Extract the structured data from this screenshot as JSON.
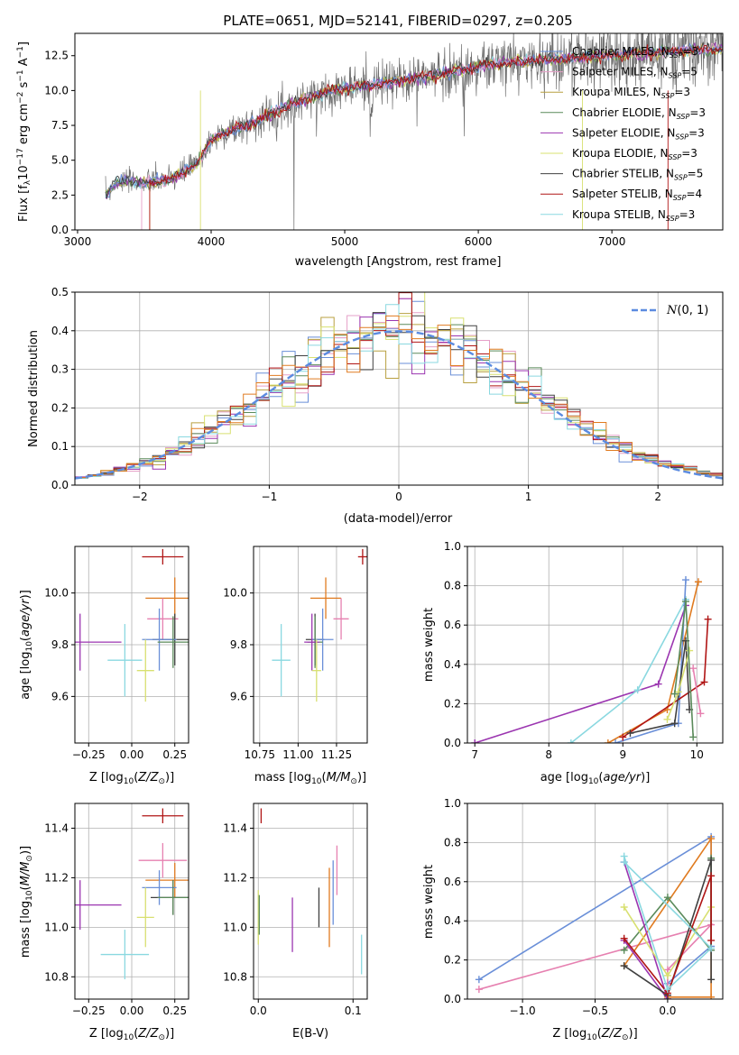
{
  "title": "PLATE=0651, MJD=52141, FIBERID=0297, z=0.205",
  "colors": {
    "cm": "#6a8fd8",
    "sm": "#e6a0c8",
    "km": "#b8a040",
    "ce": "#5a8a5a",
    "se": "#9b35b0",
    "ke": "#d8e070",
    "cs": "#404040",
    "ss": "#b01515",
    "ks": "#8ad8e0",
    "orange": "#e07b20",
    "pink": "#e680b0",
    "grid": "#b0b0b0",
    "gauss": "#5b8be0"
  },
  "chart_data": [
    {
      "type": "line",
      "id": "spectrum",
      "xlabel": "wavelength [Angstrom, rest frame]",
      "ylabel": "Flux [f",
      "xlim": [
        2980,
        7830
      ],
      "ylim": [
        0,
        14.1
      ],
      "xticks": [
        "3000",
        "4000",
        "5000",
        "6000",
        "7000"
      ],
      "yticks": [
        "0.0",
        "2.5",
        "5.0",
        "7.5",
        "10.0",
        "12.5"
      ],
      "legend": [
        {
          "name": "Chabrier MILES, N",
          "n": "=3",
          "color": "cm"
        },
        {
          "name": "Salpeter MILES, N",
          "n": "=5",
          "color": "sm"
        },
        {
          "name": "Kroupa MILES, N",
          "n": "=3",
          "color": "km"
        },
        {
          "name": "Chabrier ELODIE, N",
          "n": "=3",
          "color": "ce"
        },
        {
          "name": "Salpeter ELODIE, N",
          "n": "=3",
          "color": "se"
        },
        {
          "name": "Kroupa ELODIE, N",
          "n": "=3",
          "color": "ke"
        },
        {
          "name": "Chabrier STELIB, N",
          "n": "=5",
          "color": "cs"
        },
        {
          "name": "Salpeter STELIB, N",
          "n": "=4",
          "color": "ss"
        },
        {
          "name": "Kroupa STELIB, N",
          "n": "=3",
          "color": "ks"
        }
      ],
      "data_envelope": {
        "x": [
          3210,
          3300,
          3500,
          3700,
          3900,
          4000,
          4100,
          4300,
          4500,
          4700,
          4900,
          5100,
          5300,
          5600,
          5900,
          6200,
          6500,
          6800,
          7100,
          7400,
          7800
        ],
        "y": [
          2.5,
          3.5,
          3.4,
          3.6,
          4.8,
          6.4,
          7.0,
          7.6,
          8.6,
          9.4,
          10.0,
          10.3,
          10.5,
          11.0,
          11.5,
          12.0,
          12.2,
          12.4,
          12.6,
          12.8,
          13.0
        ]
      }
    },
    {
      "type": "histogram",
      "id": "residuals",
      "xlabel": "(data-model)/error",
      "ylabel": "Normed distribution",
      "xlim": [
        -2.5,
        2.5
      ],
      "ylim": [
        0,
        0.5
      ],
      "xticks": [
        "−2",
        "−1",
        "0",
        "1",
        "2"
      ],
      "yticks": [
        "0.0",
        "0.1",
        "0.2",
        "0.3",
        "0.4",
        "0.5"
      ],
      "legend": "N(0, 1)",
      "curve": "gaussian mean 0 sigma 1"
    },
    {
      "type": "scatter",
      "id": "age_vs_Z",
      "xlabel": "Z [log10(Z/Z☉)]",
      "ylabel": "age  [log10(age/yr)]",
      "xlim": [
        -0.33,
        0.33
      ],
      "ylim": [
        9.42,
        10.18
      ],
      "xticks": [
        "−0.25",
        "0.00",
        "0.25"
      ],
      "yticks": [
        "9.6",
        "9.8",
        "10.0"
      ],
      "points": [
        {
          "x": 0.18,
          "y": 10.14,
          "xe": 0.12,
          "ye": 0.03,
          "c": "ss"
        },
        {
          "x": 0.25,
          "y": 9.98,
          "xe": 0.17,
          "ye": 0.08,
          "c": "orange"
        },
        {
          "x": 0.18,
          "y": 9.9,
          "xe": 0.09,
          "ye": 0.08,
          "c": "pink"
        },
        {
          "x": 0.25,
          "y": 9.82,
          "xe": 0.13,
          "ye": 0.1,
          "c": "cs"
        },
        {
          "x": 0.16,
          "y": 9.82,
          "xe": 0.1,
          "ye": 0.12,
          "c": "cm"
        },
        {
          "x": 0.24,
          "y": 9.81,
          "xe": 0.09,
          "ye": 0.1,
          "c": "ce"
        },
        {
          "x": -0.3,
          "y": 9.81,
          "xe": 0.24,
          "ye": 0.11,
          "c": "se"
        },
        {
          "x": 0.08,
          "y": 9.7,
          "xe": 0.05,
          "ye": 0.12,
          "c": "ke"
        },
        {
          "x": -0.04,
          "y": 9.74,
          "xe": 0.1,
          "ye": 0.14,
          "c": "ks"
        }
      ]
    },
    {
      "type": "scatter",
      "id": "age_vs_mass",
      "xlabel": "mass [log10(M/M☉)]",
      "ylabel": "",
      "xlim": [
        10.71,
        11.45
      ],
      "ylim": [
        9.42,
        10.18
      ],
      "xticks": [
        "10.75",
        "11.00",
        "11.25"
      ],
      "yticks": [
        "9.6",
        "9.8",
        "10.0"
      ],
      "points": [
        {
          "x": 11.42,
          "y": 10.14,
          "xe": 0.03,
          "ye": 0.03,
          "c": "ss"
        },
        {
          "x": 11.18,
          "y": 9.98,
          "xe": 0.1,
          "ye": 0.08,
          "c": "orange"
        },
        {
          "x": 11.28,
          "y": 9.9,
          "xe": 0.05,
          "ye": 0.08,
          "c": "pink"
        },
        {
          "x": 11.11,
          "y": 9.82,
          "xe": 0.06,
          "ye": 0.1,
          "c": "cs"
        },
        {
          "x": 11.16,
          "y": 9.82,
          "xe": 0.07,
          "ye": 0.12,
          "c": "cm"
        },
        {
          "x": 11.11,
          "y": 9.81,
          "xe": 0.05,
          "ye": 0.1,
          "c": "ce"
        },
        {
          "x": 11.09,
          "y": 9.81,
          "xe": 0.05,
          "ye": 0.11,
          "c": "se"
        },
        {
          "x": 11.12,
          "y": 9.7,
          "xe": 0.03,
          "ye": 0.12,
          "c": "ke"
        },
        {
          "x": 10.89,
          "y": 9.74,
          "xe": 0.06,
          "ye": 0.14,
          "c": "ks"
        }
      ]
    },
    {
      "type": "line",
      "id": "mass_weight_vs_age",
      "xlabel": "age  [log10(age/yr)]",
      "ylabel": "mass weight",
      "xlim": [
        6.9,
        10.35
      ],
      "ylim": [
        0,
        1.0
      ],
      "xticks": [
        "7",
        "8",
        "9",
        "10"
      ],
      "yticks": [
        "0.0",
        "0.2",
        "0.4",
        "0.6",
        "0.8",
        "1.0"
      ],
      "series": [
        {
          "c": "se",
          "x": [
            7.0,
            9.48,
            9.85
          ],
          "y": [
            0.0,
            0.3,
            0.7
          ]
        },
        {
          "c": "ks",
          "x": [
            8.3,
            9.2,
            9.85
          ],
          "y": [
            0.0,
            0.27,
            0.73
          ]
        },
        {
          "c": "orange",
          "x": [
            8.8,
            9.6,
            10.02
          ],
          "y": [
            0.0,
            0.17,
            0.82
          ]
        },
        {
          "c": "cm",
          "x": [
            8.9,
            9.75,
            9.85
          ],
          "y": [
            0.0,
            0.1,
            0.83
          ]
        },
        {
          "c": "ss",
          "x": [
            9.0,
            10.1,
            10.15
          ],
          "y": [
            0.03,
            0.31,
            0.63
          ]
        },
        {
          "c": "cs",
          "x": [
            9.1,
            9.7,
            9.85,
            9.9
          ],
          "y": [
            0.05,
            0.1,
            0.52,
            0.17
          ]
        },
        {
          "c": "ke",
          "x": [
            9.6,
            9.75,
            9.9
          ],
          "y": [
            0.12,
            0.26,
            0.47
          ]
        },
        {
          "c": "pink",
          "x": [
            9.95,
            10.05
          ],
          "y": [
            0.38,
            0.15
          ]
        },
        {
          "c": "ce",
          "x": [
            9.7,
            9.85,
            9.95
          ],
          "y": [
            0.25,
            0.72,
            0.03
          ]
        }
      ]
    },
    {
      "type": "scatter",
      "id": "mass_vs_Z",
      "xlabel": "Z [log10(Z/Z☉)]",
      "ylabel": "mass [log10(M/M☉)]",
      "xlim": [
        -0.33,
        0.33
      ],
      "ylim": [
        10.71,
        11.5
      ],
      "xticks": [
        "−0.25",
        "0.00",
        "0.25"
      ],
      "yticks": [
        "10.8",
        "11.0",
        "11.2",
        "11.4"
      ],
      "points": [
        {
          "x": 0.18,
          "y": 11.45,
          "xe": 0.12,
          "ye": 0.03,
          "c": "ss"
        },
        {
          "x": 0.18,
          "y": 11.27,
          "xe": 0.14,
          "ye": 0.07,
          "c": "pink"
        },
        {
          "x": 0.25,
          "y": 11.19,
          "xe": 0.17,
          "ye": 0.07,
          "c": "orange"
        },
        {
          "x": 0.16,
          "y": 11.16,
          "xe": 0.1,
          "ye": 0.07,
          "c": "cm"
        },
        {
          "x": 0.24,
          "y": 11.12,
          "xe": 0.13,
          "ye": 0.07,
          "c": "cs"
        },
        {
          "x": 0.24,
          "y": 11.12,
          "xe": 0.09,
          "ye": 0.07,
          "c": "ce"
        },
        {
          "x": -0.3,
          "y": 11.09,
          "xe": 0.24,
          "ye": 0.1,
          "c": "se"
        },
        {
          "x": 0.08,
          "y": 11.04,
          "xe": 0.05,
          "ye": 0.12,
          "c": "ke"
        },
        {
          "x": -0.04,
          "y": 10.89,
          "xe": 0.14,
          "ye": 0.1,
          "c": "ks"
        }
      ]
    },
    {
      "type": "scatter",
      "id": "mass_vs_EBV",
      "xlabel": "E(B-V)",
      "ylabel": "",
      "xlim": [
        -0.005,
        0.115
      ],
      "ylim": [
        10.71,
        11.5
      ],
      "xticks": [
        "0.0",
        "0.1"
      ],
      "yticks": [
        "10.8",
        "11.0",
        "11.2",
        "11.4"
      ],
      "points": [
        {
          "x": 0.003,
          "y": 11.45,
          "xe": 0,
          "ye": 0.03,
          "c": "ss"
        },
        {
          "x": 0.0,
          "y": 11.04,
          "xe": 0,
          "ye": 0.11,
          "c": "ke"
        },
        {
          "x": 0.001,
          "y": 11.05,
          "xe": 0,
          "ye": 0.08,
          "c": "ce"
        },
        {
          "x": 0.036,
          "y": 11.01,
          "xe": 0,
          "ye": 0.11,
          "c": "se"
        },
        {
          "x": 0.064,
          "y": 11.08,
          "xe": 0,
          "ye": 0.08,
          "c": "cs"
        },
        {
          "x": 0.075,
          "y": 11.08,
          "xe": 0,
          "ye": 0.16,
          "c": "orange"
        },
        {
          "x": 0.079,
          "y": 11.14,
          "xe": 0,
          "ye": 0.13,
          "c": "cm"
        },
        {
          "x": 0.083,
          "y": 11.23,
          "xe": 0,
          "ye": 0.1,
          "c": "pink"
        },
        {
          "x": 0.109,
          "y": 10.89,
          "xe": 0,
          "ye": 0.08,
          "c": "ks"
        }
      ]
    },
    {
      "type": "line",
      "id": "mass_weight_vs_Z",
      "xlabel": "Z [log10(Z/Z☉)]",
      "ylabel": "mass weight",
      "xlim": [
        -1.38,
        0.38
      ],
      "ylim": [
        0,
        1.0
      ],
      "xticks": [
        "−1.0",
        "−0.5",
        "0.0"
      ],
      "yticks": [
        "0.0",
        "0.2",
        "0.4",
        "0.6",
        "0.8",
        "1.0"
      ],
      "series": [
        {
          "c": "cm",
          "x": [
            -1.3,
            0.3,
            0.3,
            0.0,
            0.0
          ],
          "y": [
            0.1,
            0.83,
            0.27,
            0.08,
            0.02
          ]
        },
        {
          "c": "pink",
          "x": [
            -1.3,
            0.3,
            0.0,
            0.0
          ],
          "y": [
            0.05,
            0.38,
            0.15,
            0.02
          ]
        },
        {
          "c": "orange",
          "x": [
            -0.3,
            0.3,
            0.3,
            0.0,
            0.0
          ],
          "y": [
            0.17,
            0.82,
            0.01,
            0.01,
            0.0
          ]
        },
        {
          "c": "ce",
          "x": [
            -0.3,
            0.0,
            0.3,
            0.3
          ],
          "y": [
            0.25,
            0.52,
            0.25,
            0.72
          ]
        },
        {
          "c": "se",
          "x": [
            -0.3,
            0.0,
            -0.3
          ],
          "y": [
            0.7,
            0.0,
            0.3
          ]
        },
        {
          "c": "ke",
          "x": [
            -0.3,
            0.0,
            0.3
          ],
          "y": [
            0.47,
            0.12,
            0.47
          ]
        },
        {
          "c": "cs",
          "x": [
            -0.3,
            0.0,
            0.3,
            0.3
          ],
          "y": [
            0.17,
            0.02,
            0.71,
            0.1
          ]
        },
        {
          "c": "ss",
          "x": [
            -0.3,
            0.0,
            0.3,
            0.3
          ],
          "y": [
            0.31,
            0.03,
            0.63,
            0.3
          ]
        },
        {
          "c": "ks",
          "x": [
            -0.3,
            0.0,
            0.3,
            -0.3
          ],
          "y": [
            0.73,
            0.05,
            0.26,
            0.7
          ]
        }
      ]
    }
  ]
}
